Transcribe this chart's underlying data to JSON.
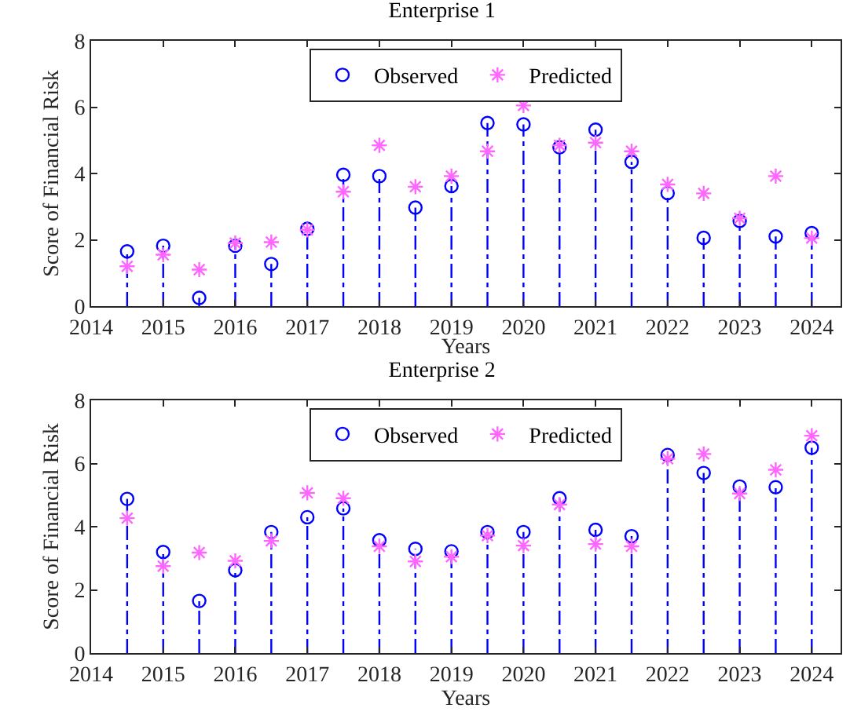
{
  "chart_data": [
    {
      "type": "lollipop",
      "title": "Enterprise 1",
      "xlabel": "Years",
      "ylabel": "Score of Financial Risk",
      "x": [
        2014.5,
        2015,
        2015.5,
        2016,
        2016.5,
        2017,
        2017.5,
        2018,
        2018.5,
        2019,
        2019.5,
        2020,
        2020.5,
        2021,
        2021.5,
        2022,
        2022.5,
        2023,
        2023.5,
        2024
      ],
      "series": [
        {
          "name": "Observed",
          "color": "#0000ff",
          "marker": "circle",
          "line_style": "dashed",
          "values": [
            1.65,
            1.82,
            0.25,
            1.82,
            1.27,
            2.33,
            3.96,
            3.92,
            2.97,
            3.62,
            5.52,
            5.48,
            4.79,
            5.32,
            4.35,
            3.41,
            2.06,
            2.57,
            2.1,
            2.2
          ]
        },
        {
          "name": "Predicted",
          "type": "scatter",
          "color": "#ff66ff",
          "marker": "cross",
          "values": [
            1.2,
            1.55,
            1.1,
            1.9,
            1.93,
            2.3,
            3.45,
            4.85,
            3.6,
            3.92,
            4.67,
            6.05,
            4.85,
            4.93,
            4.67,
            3.67,
            3.4,
            2.65,
            3.92,
            2.05
          ]
        }
      ],
      "xlim": [
        2014,
        2024.4
      ],
      "xticks": [
        2014,
        2015,
        2016,
        2017,
        2018,
        2019,
        2020,
        2021,
        2022,
        2023,
        2024
      ],
      "ylim": [
        0,
        8
      ],
      "yticks": [
        0,
        2,
        4,
        6,
        8
      ],
      "legend": "top"
    },
    {
      "type": "lollipop",
      "title": "Enterprise 2",
      "xlabel": "Years",
      "ylabel": "Score of Financial Risk",
      "x": [
        2014.5,
        2015,
        2015.5,
        2016,
        2016.5,
        2017,
        2017.5,
        2018,
        2018.5,
        2019,
        2019.5,
        2020,
        2020.5,
        2021,
        2021.5,
        2022,
        2022.5,
        2023,
        2023.5,
        2024
      ],
      "series": [
        {
          "name": "Observed",
          "color": "#0000ff",
          "marker": "circle",
          "line_style": "dashed",
          "values": [
            4.88,
            3.2,
            1.65,
            2.62,
            3.83,
            4.3,
            4.58,
            3.57,
            3.3,
            3.22,
            3.83,
            3.83,
            4.9,
            3.9,
            3.7,
            6.27,
            5.7,
            5.27,
            5.25,
            6.5
          ]
        },
        {
          "name": "Predicted",
          "type": "scatter",
          "color": "#ff66ff",
          "marker": "cross",
          "values": [
            4.27,
            2.75,
            3.18,
            2.92,
            3.55,
            5.07,
            4.9,
            3.38,
            2.9,
            3.05,
            3.72,
            3.4,
            4.7,
            3.45,
            3.38,
            6.15,
            6.3,
            5.05,
            5.8,
            6.88
          ]
        }
      ],
      "xlim": [
        2014,
        2024.4
      ],
      "xticks": [
        2014,
        2015,
        2016,
        2017,
        2018,
        2019,
        2020,
        2021,
        2022,
        2023,
        2024
      ],
      "ylim": [
        0,
        8
      ],
      "yticks": [
        0,
        2,
        4,
        6,
        8
      ],
      "legend": "top"
    }
  ]
}
